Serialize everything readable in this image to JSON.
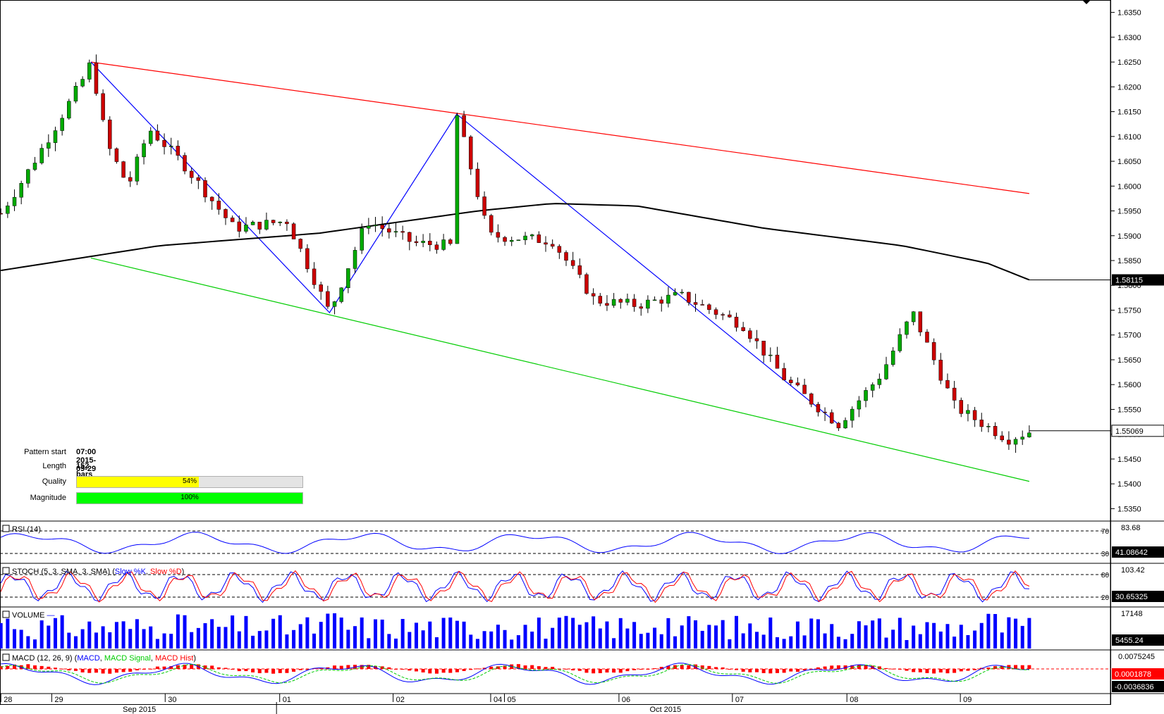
{
  "chart_data": {
    "type": "candlestick",
    "price_axis": {
      "ylim": [
        1.5325,
        1.6375
      ],
      "ticks": [
        "1.6350",
        "1.6300",
        "1.6250",
        "1.6200",
        "1.6150",
        "1.6100",
        "1.6050",
        "1.6000",
        "1.5950",
        "1.5900",
        "1.5850",
        "1.5800",
        "1.5750",
        "1.5700",
        "1.5650",
        "1.5600",
        "1.5550",
        "1.5500",
        "1.5450",
        "1.5400",
        "1.5350"
      ]
    },
    "x_labels": {
      "days": [
        "28",
        "29",
        "30",
        "01",
        "02",
        "04",
        "05",
        "06",
        "07",
        "08",
        "09"
      ],
      "months": [
        "Sep 2015",
        "Oct 2015"
      ]
    },
    "pattern_lines": {
      "resistance": {
        "start_price": 1.625,
        "end_price": 1.5985,
        "color": "#ff0000"
      },
      "support": {
        "start_price": 1.5855,
        "end_price": 1.5405,
        "color": "#00cc00"
      },
      "zigzag": {
        "prices": [
          1.625,
          1.5745,
          1.6145,
          1.552
        ],
        "color": "#0000ff"
      }
    },
    "moving_average": {
      "label": "1.58115",
      "color": "#000000"
    },
    "last_price": "1.55069",
    "pattern_info": {
      "start_label": "Pattern start",
      "start_value": "07:00 2015-09-29",
      "length_label": "Length",
      "length_value": "152 bars",
      "quality_label": "Quality",
      "quality_text": "54%",
      "quality_fraction": 0.54,
      "magnitude_label": "Magnitude",
      "magnitude_text": "100%",
      "magnitude_fraction": 1.0
    },
    "panels": {
      "rsi": {
        "title": "RSI (14)",
        "level_high": "70",
        "level_low": "30",
        "top_value": "83.68",
        "current": "41.08642"
      },
      "stoch": {
        "title": "STOCH (5, 3, SMA, 3, SMA)",
        "k_label": "Slow %K",
        "d_label": "Slow %D",
        "level_high": "80",
        "level_low": "20",
        "top_value": "103.42",
        "current": "30.65325"
      },
      "volume": {
        "title": "VOLUME",
        "top_value": "17148",
        "current": "5455.24"
      },
      "macd": {
        "title": "MACD (12, 26, 9)",
        "macd_label": "MACD",
        "signal_label": "MACD Signal",
        "hist_label": "MACD Hist",
        "top_value": "0.0075245",
        "value_1": "0.0001878",
        "value_2": "-0.0036836"
      }
    },
    "colors": {
      "up": "#00aa00",
      "down": "#cc0000",
      "rsi": "#0000ff",
      "k": "#0000ff",
      "d": "#ff0000",
      "volume": "#0000ff",
      "macd": "#0000ff",
      "signal": "#00cc00",
      "hist": "#ff0000",
      "label_bg": "#000000"
    }
  }
}
